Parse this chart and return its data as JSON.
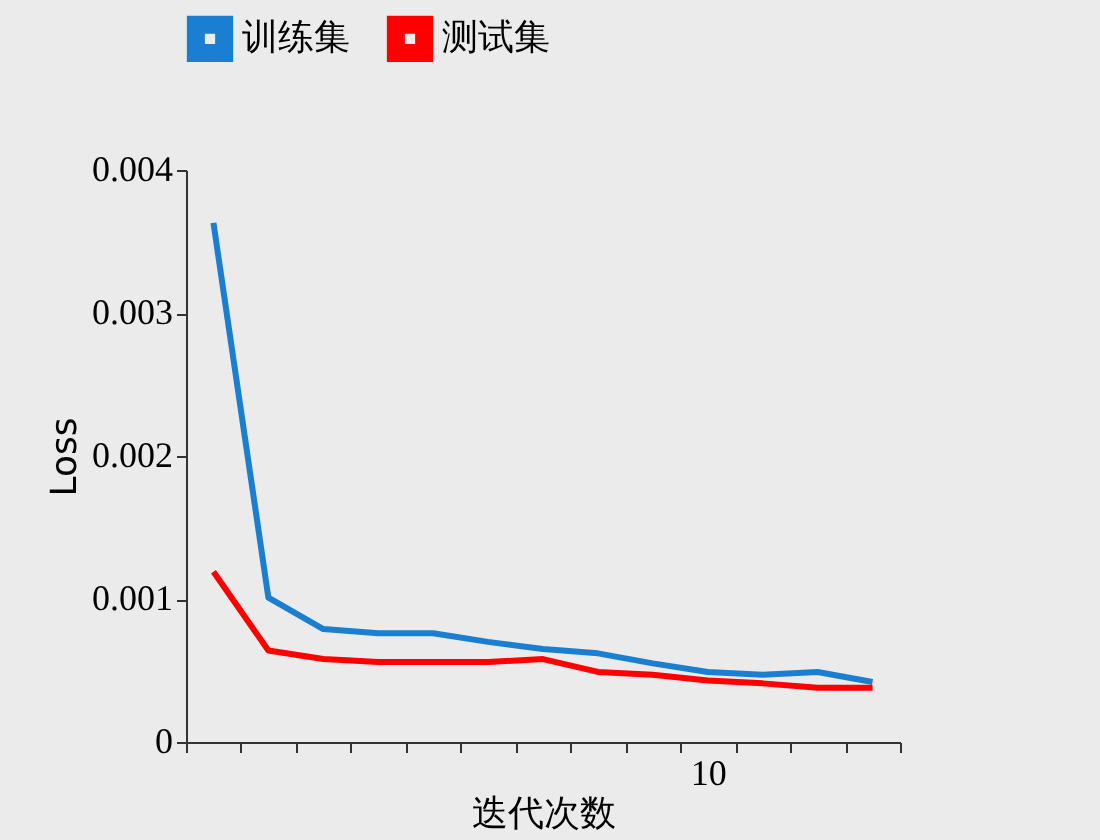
{
  "chart_data": {
    "type": "line",
    "xlabel": "迭代次数",
    "ylabel": "Loss",
    "categories": [
      null,
      null,
      null,
      null,
      null,
      null,
      null,
      null,
      null,
      "10",
      null,
      null,
      null
    ],
    "series": [
      {
        "name": "训练集",
        "color": "#1a7fd0",
        "values": [
          0.00363,
          0.00101,
          0.00079,
          0.00076,
          0.00076,
          0.0007,
          0.00065,
          0.00062,
          0.00055,
          0.00049,
          0.00047,
          0.00049,
          0.00042
        ]
      },
      {
        "name": "测试集",
        "color": "#ff0000",
        "values": [
          0.00119,
          0.00064,
          0.00058,
          0.00056,
          0.00056,
          0.00056,
          0.00058,
          0.00049,
          0.00047,
          0.00043,
          0.00041,
          0.00038,
          0.00038
        ]
      }
    ],
    "ylim": [
      0,
      0.004
    ],
    "yticks": [
      0,
      0.001,
      0.002,
      0.003,
      0.004
    ],
    "grid": false,
    "legend": "top",
    "marker": "none",
    "line_style": "solid"
  }
}
